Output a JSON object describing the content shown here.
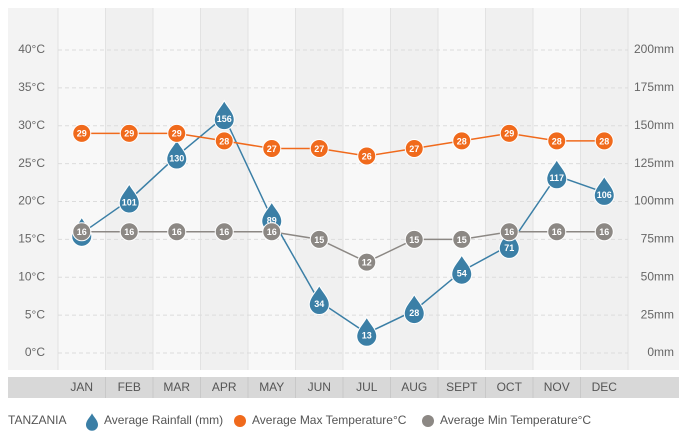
{
  "chart_data": {
    "type": "line",
    "title": "TANZANIA",
    "categories": [
      "JAN",
      "FEB",
      "MAR",
      "APR",
      "MAY",
      "JUN",
      "JUL",
      "AUG",
      "SEPT",
      "OCT",
      "NOV",
      "DEC"
    ],
    "series": [
      {
        "name": "Average Rainfall (mm)",
        "color": "#3b7fa6",
        "axis": "y2",
        "marker": "drop",
        "values": [
          79,
          101,
          130,
          156,
          89,
          34,
          13,
          28,
          54,
          71,
          117,
          106
        ]
      },
      {
        "name": "Average Max Temperature°C",
        "color": "#f06a1c",
        "marker": "circle",
        "values": [
          29,
          29,
          29,
          28,
          27,
          27,
          26,
          27,
          28,
          29,
          28,
          28
        ]
      },
      {
        "name": "Average Min Temperature°C",
        "color": "#8c8884",
        "marker": "circle",
        "values": [
          16,
          16,
          16,
          16,
          16,
          15,
          12,
          15,
          15,
          16,
          16,
          16
        ]
      }
    ],
    "ylim": [
      0,
      40
    ],
    "yticks": [
      {
        "value": 0,
        "label": "0°C"
      },
      {
        "value": 5,
        "label": "5°C"
      },
      {
        "value": 10,
        "label": "10°C"
      },
      {
        "value": 15,
        "label": "15°C"
      },
      {
        "value": 20,
        "label": "20°C"
      },
      {
        "value": 25,
        "label": "25°C"
      },
      {
        "value": 30,
        "label": "30°C"
      },
      {
        "value": 35,
        "label": "35°C"
      },
      {
        "value": 40,
        "label": "40°C"
      }
    ],
    "y2lim": [
      0,
      200
    ],
    "y2ticks": [
      {
        "value": 0,
        "label": "0mm"
      },
      {
        "value": 25,
        "label": "25mm"
      },
      {
        "value": 50,
        "label": "50mm"
      },
      {
        "value": 75,
        "label": "75mm"
      },
      {
        "value": 100,
        "label": "100mm"
      },
      {
        "value": 125,
        "label": "125mm"
      },
      {
        "value": 150,
        "label": "150mm"
      },
      {
        "value": 175,
        "label": "175mm"
      },
      {
        "value": 200,
        "label": "200mm"
      }
    ],
    "grid": true
  }
}
